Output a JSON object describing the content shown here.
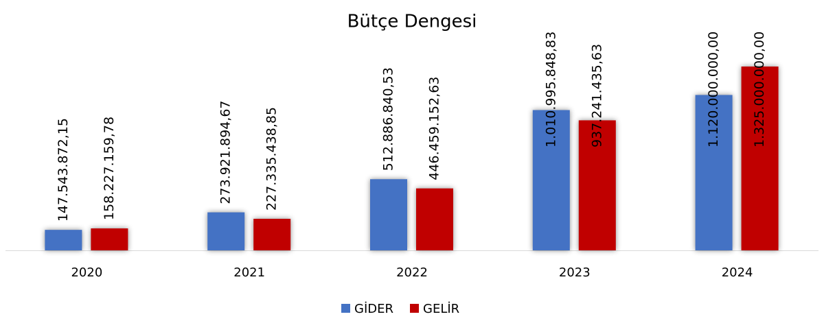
{
  "chart_data": {
    "type": "bar",
    "title": "Bütçe Dengesi",
    "categories": [
      "2020",
      "2021",
      "2022",
      "2023",
      "2024"
    ],
    "series": [
      {
        "name": "GİDER",
        "color": "#4472c4",
        "values": [
          147543872.15,
          273921894.67,
          512886840.53,
          1010995848.83,
          1120000000
        ],
        "value_labels": [
          "147.543.872,15",
          "273.921.894,67",
          "512.886.840,53",
          "1.010.995.848,83",
          "1.120.000.000,00"
        ]
      },
      {
        "name": "GELİR",
        "color": "#c00000",
        "values": [
          158227159.78,
          227335438.85,
          446459152.63,
          937241435.63,
          1325000000
        ],
        "value_labels": [
          "158.227.159,78",
          "227.335.438,85",
          "446.459.152,63",
          "937.241.435,63",
          "1.325.000.000,00"
        ]
      }
    ],
    "legend": "bottom"
  }
}
